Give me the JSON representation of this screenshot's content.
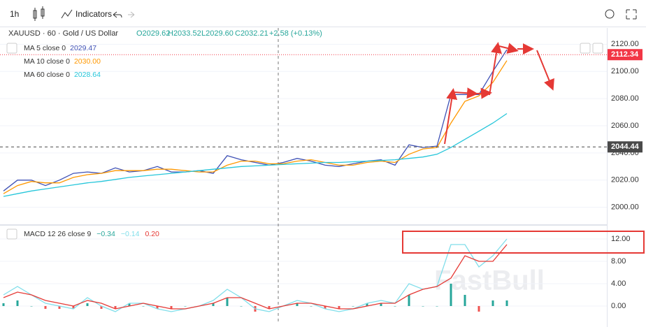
{
  "toolbar": {
    "interval": "1h",
    "indicators": "Indicators"
  },
  "header": {
    "symbol": "XAUUSD · 60 · Gold / US Dollar",
    "open": "O2029.62",
    "high": "H2033.52",
    "low": "L2029.60",
    "close": "C2032.21",
    "change": "+2.58 (+0.13%)"
  },
  "watermark": "FastBull",
  "chart_data": [
    {
      "type": "line",
      "series": [
        {
          "name": "MA 5 close 0",
          "legend_value": "2029.47",
          "color": "#3f51b5",
          "values": [
            2012,
            2020,
            2020,
            2016,
            2020,
            2025,
            2026,
            2025,
            2029,
            2026,
            2027,
            2030,
            2026,
            2026,
            2027,
            2025,
            2038,
            2035,
            2033,
            2031,
            2033,
            2036,
            2034,
            2031,
            2030,
            2032,
            2034,
            2035,
            2031,
            2046,
            2044,
            2045,
            2083,
            2083,
            2083,
            2100,
            2116
          ]
        },
        {
          "name": "MA 10 close 0",
          "legend_value": "2030.00",
          "color": "#ff9800",
          "values": [
            2010,
            2016,
            2019,
            2018,
            2018,
            2022,
            2024,
            2025,
            2027,
            2027,
            2027,
            2028,
            2028,
            2027,
            2026,
            2026,
            2031,
            2034,
            2034,
            2032,
            2032,
            2034,
            2035,
            2033,
            2031,
            2031,
            2033,
            2034,
            2033,
            2039,
            2043,
            2044,
            2062,
            2078,
            2082,
            2092,
            2108
          ]
        },
        {
          "name": "MA 60 close 0",
          "legend_value": "2028.64",
          "color": "#26c6da",
          "values": [
            2008,
            2010,
            2012,
            2013.5,
            2015,
            2016.5,
            2018,
            2019,
            2020.5,
            2022,
            2023,
            2024,
            2025,
            2026,
            2027,
            2028,
            2029,
            2030,
            2030.5,
            2031,
            2031.5,
            2032,
            2032.5,
            2033,
            2033,
            2033.5,
            2034,
            2034.5,
            2035,
            2036,
            2037,
            2039,
            2044,
            2050,
            2056,
            2062,
            2069
          ]
        }
      ],
      "ylim": [
        1988,
        2132
      ],
      "yticks": [
        {
          "value": 2000,
          "label": "2000.00"
        },
        {
          "value": 2020,
          "label": "2020.00"
        },
        {
          "value": 2040,
          "label": "2040.00"
        },
        {
          "value": 2060,
          "label": "2060.00"
        },
        {
          "value": 2080,
          "label": "2080.00"
        },
        {
          "value": 2100,
          "label": "2100.00"
        },
        {
          "value": 2120,
          "label": "2120.00"
        }
      ],
      "grid": true,
      "price_lines": [
        {
          "value": 2112.34,
          "color": "#f23645",
          "style": "dotted"
        },
        {
          "value": 2044.44,
          "color": "#4a4a4a",
          "style": "dashed"
        }
      ]
    },
    {
      "type": "macd",
      "title": "MACD 12 26 close 9",
      "histogram": {
        "legend_value": "−0.34",
        "up_color": "#26a69a",
        "down_color": "#ef5350",
        "values": [
          0.5,
          1,
          0,
          -0.5,
          -0.5,
          -0.5,
          0.5,
          -0.5,
          -0.5,
          0.5,
          0,
          -0.5,
          -0.5,
          0,
          0,
          0.5,
          1.5,
          0,
          -1,
          -0.5,
          0,
          0.5,
          0,
          -0.5,
          -0.5,
          0,
          0.5,
          0.5,
          0,
          2,
          0,
          0,
          4,
          2,
          -1,
          1,
          1
        ]
      },
      "series": [
        {
          "legend_value": "−0.14",
          "color": "#80deea",
          "values": [
            2,
            3.5,
            2,
            0.5,
            0,
            -0.5,
            1.5,
            0,
            -1,
            0.5,
            0.5,
            -0.5,
            -1,
            -0.5,
            0,
            1,
            3,
            1.5,
            -0.5,
            -1,
            0,
            1,
            0.5,
            -0.5,
            -1,
            -0.5,
            0.5,
            1,
            0.5,
            4,
            3,
            3.5,
            11,
            11,
            7,
            9,
            12
          ]
        },
        {
          "legend_value": "0.20",
          "color": "#e53935",
          "values": [
            1.5,
            2.5,
            2,
            1,
            0.5,
            0,
            1,
            0.5,
            -0.5,
            0,
            0.5,
            0,
            -0.5,
            -0.5,
            0,
            0.5,
            1.5,
            1.5,
            0.5,
            -0.5,
            0,
            0.5,
            0.5,
            0,
            -0.5,
            -0.5,
            0,
            0.5,
            0.5,
            2,
            3,
            3.5,
            5,
            9,
            8,
            8,
            11
          ]
        }
      ],
      "ylim": [
        -3,
        14.25
      ],
      "yticks": [
        {
          "value": 0,
          "label": "0.00"
        },
        {
          "value": 4,
          "label": "4.00"
        },
        {
          "value": 8,
          "label": "8.00"
        },
        {
          "value": 12,
          "label": "12.00"
        }
      ],
      "grid": true
    }
  ]
}
